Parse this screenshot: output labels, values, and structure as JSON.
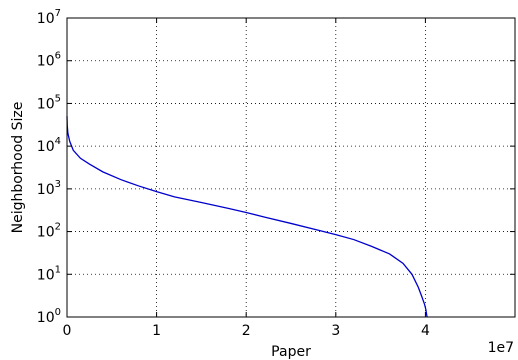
{
  "chart_data": {
    "type": "line",
    "title": "",
    "xlabel": "Paper",
    "ylabel": "Neighborhood Size",
    "x_offset_label": "1e7",
    "x_scale": "linear",
    "y_scale": "log",
    "xlim": [
      0,
      50000000
    ],
    "ylim": [
      1,
      10000000
    ],
    "x_ticks": [
      0,
      10000000,
      20000000,
      30000000,
      40000000
    ],
    "x_tick_labels": [
      "0",
      "1",
      "2",
      "3",
      "4"
    ],
    "y_ticks": [
      1,
      10,
      100,
      1000,
      10000,
      100000,
      1000000,
      10000000
    ],
    "y_tick_labels": [
      {
        "base": "10",
        "exp": "0"
      },
      {
        "base": "10",
        "exp": "1"
      },
      {
        "base": "10",
        "exp": "2"
      },
      {
        "base": "10",
        "exp": "3"
      },
      {
        "base": "10",
        "exp": "4"
      },
      {
        "base": "10",
        "exp": "5"
      },
      {
        "base": "10",
        "exp": "6"
      },
      {
        "base": "10",
        "exp": "7"
      }
    ],
    "grid": true,
    "line_color": "#0000cc",
    "series": [
      {
        "x": [
          0,
          30000,
          100000,
          300000,
          700000,
          1500000,
          2500000,
          4000000,
          6000000,
          8000000,
          10000000,
          12000000,
          15000000,
          18000000,
          20000000,
          22000000,
          25000000,
          28000000,
          30000000,
          32000000,
          34000000,
          36000000,
          37500000,
          38500000,
          39200000,
          39600000,
          39900000,
          40050000,
          40150000,
          40200000
        ],
        "y": [
          50000,
          30000,
          20000,
          13000,
          8000,
          5200,
          3800,
          2500,
          1650,
          1170,
          860,
          650,
          480,
          350,
          280,
          220,
          155,
          108,
          85,
          65,
          45,
          30,
          18,
          10,
          5,
          3,
          2,
          1.5,
          1.1,
          1.0
        ]
      }
    ]
  }
}
